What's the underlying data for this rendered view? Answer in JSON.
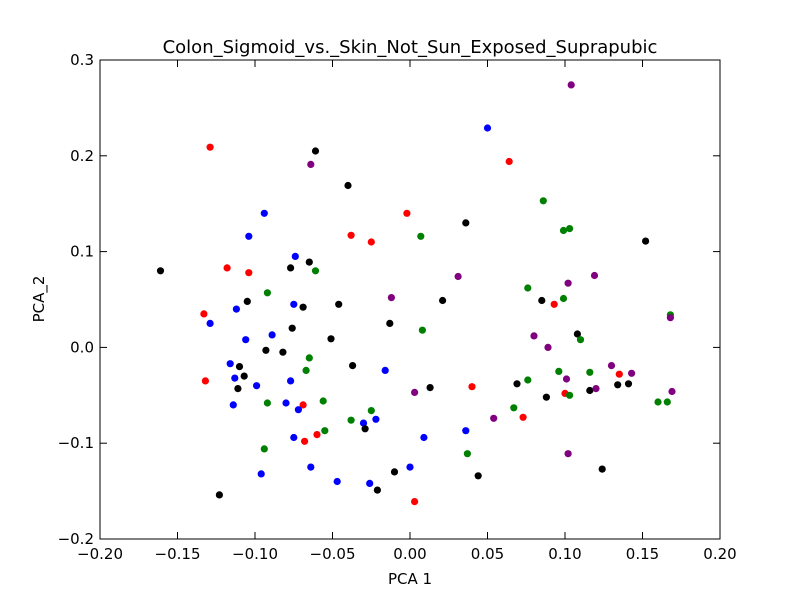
{
  "chart_data": {
    "type": "scatter",
    "title": "Colon_Sigmoid_vs._Skin_Not_Sun_Exposed_Suprapubic",
    "xlabel": "PCA 1",
    "ylabel": "PCA_2",
    "xlim": [
      -0.2,
      0.2
    ],
    "ylim": [
      -0.2,
      0.3
    ],
    "grid": false,
    "x_ticks": [
      -0.2,
      -0.15,
      -0.1,
      -0.05,
      0.0,
      0.05,
      0.1,
      0.15,
      0.2
    ],
    "x_tick_labels": [
      "−0.20",
      "−0.15",
      "−0.10",
      "−0.05",
      "0.00",
      "0.05",
      "0.10",
      "0.15",
      "0.20"
    ],
    "y_ticks": [
      -0.2,
      -0.1,
      0.0,
      0.1,
      0.2,
      0.3
    ],
    "y_tick_labels": [
      "−0.2",
      "−0.1",
      "0.0",
      "0.1",
      "0.2",
      "0.3"
    ],
    "series": [
      {
        "color": "#ff0000",
        "points": [
          [
            -0.129,
            0.209
          ],
          [
            -0.118,
            0.083
          ],
          [
            -0.104,
            0.078
          ],
          [
            -0.133,
            0.035
          ],
          [
            -0.132,
            -0.035
          ],
          [
            -0.069,
            -0.06
          ],
          [
            -0.068,
            -0.098
          ],
          [
            -0.06,
            -0.091
          ],
          [
            -0.038,
            0.117
          ],
          [
            -0.025,
            0.11
          ],
          [
            -0.002,
            0.14
          ],
          [
            0.003,
            -0.161
          ],
          [
            0.04,
            -0.041
          ],
          [
            0.064,
            0.194
          ],
          [
            0.073,
            -0.073
          ],
          [
            0.093,
            0.045
          ],
          [
            0.1,
            -0.048
          ],
          [
            0.135,
            -0.028
          ]
        ]
      },
      {
        "color": "#0000ff",
        "points": [
          [
            0.05,
            0.229
          ],
          [
            -0.094,
            0.14
          ],
          [
            -0.104,
            0.116
          ],
          [
            -0.074,
            0.095
          ],
          [
            -0.112,
            0.04
          ],
          [
            -0.129,
            0.025
          ],
          [
            -0.075,
            0.045
          ],
          [
            -0.089,
            0.013
          ],
          [
            -0.106,
            0.008
          ],
          [
            -0.116,
            -0.017
          ],
          [
            -0.113,
            -0.032
          ],
          [
            -0.099,
            -0.04
          ],
          [
            -0.077,
            -0.035
          ],
          [
            -0.114,
            -0.06
          ],
          [
            -0.08,
            -0.058
          ],
          [
            -0.072,
            -0.065
          ],
          [
            -0.075,
            -0.094
          ],
          [
            -0.03,
            -0.079
          ],
          [
            -0.022,
            -0.075
          ],
          [
            -0.016,
            -0.024
          ],
          [
            0.009,
            -0.094
          ],
          [
            0.036,
            -0.087
          ],
          [
            -0.096,
            -0.132
          ],
          [
            -0.064,
            -0.125
          ],
          [
            -0.047,
            -0.14
          ],
          [
            -0.026,
            -0.142
          ],
          [
            0.0,
            -0.125
          ]
        ]
      },
      {
        "color": "#000000",
        "points": [
          [
            -0.161,
            0.08
          ],
          [
            -0.061,
            0.205
          ],
          [
            -0.04,
            0.169
          ],
          [
            -0.065,
            0.089
          ],
          [
            -0.077,
            0.083
          ],
          [
            -0.105,
            0.048
          ],
          [
            -0.069,
            0.042
          ],
          [
            -0.046,
            0.045
          ],
          [
            -0.076,
            0.02
          ],
          [
            -0.051,
            0.009
          ],
          [
            -0.093,
            -0.003
          ],
          [
            -0.082,
            -0.005
          ],
          [
            -0.11,
            -0.02
          ],
          [
            -0.107,
            -0.03
          ],
          [
            -0.111,
            -0.043
          ],
          [
            -0.037,
            -0.019
          ],
          [
            -0.029,
            -0.085
          ],
          [
            -0.021,
            -0.149
          ],
          [
            -0.01,
            -0.13
          ],
          [
            0.013,
            -0.042
          ],
          [
            0.021,
            0.049
          ],
          [
            0.036,
            0.13
          ],
          [
            0.044,
            -0.134
          ],
          [
            0.069,
            -0.038
          ],
          [
            0.085,
            0.049
          ],
          [
            0.088,
            -0.052
          ],
          [
            0.108,
            0.014
          ],
          [
            0.116,
            -0.045
          ],
          [
            0.124,
            -0.127
          ],
          [
            0.134,
            -0.039
          ],
          [
            0.141,
            -0.038
          ],
          [
            0.152,
            0.111
          ],
          [
            -0.123,
            -0.154
          ],
          [
            -0.013,
            0.025
          ]
        ]
      },
      {
        "color": "#008000",
        "points": [
          [
            -0.092,
            0.057
          ],
          [
            -0.061,
            0.08
          ],
          [
            -0.065,
            -0.011
          ],
          [
            -0.067,
            -0.024
          ],
          [
            -0.092,
            -0.058
          ],
          [
            -0.094,
            -0.106
          ],
          [
            -0.056,
            -0.056
          ],
          [
            -0.055,
            -0.087
          ],
          [
            -0.038,
            -0.076
          ],
          [
            -0.025,
            -0.066
          ],
          [
            0.007,
            0.116
          ],
          [
            0.008,
            0.018
          ],
          [
            0.037,
            -0.111
          ],
          [
            0.067,
            -0.063
          ],
          [
            0.076,
            0.062
          ],
          [
            0.076,
            -0.034
          ],
          [
            0.086,
            0.153
          ],
          [
            0.099,
            0.051
          ],
          [
            0.099,
            0.122
          ],
          [
            0.103,
            0.124
          ],
          [
            0.096,
            -0.025
          ],
          [
            0.103,
            -0.05
          ],
          [
            0.11,
            0.008
          ],
          [
            0.116,
            -0.026
          ],
          [
            0.16,
            -0.057
          ],
          [
            0.166,
            -0.057
          ],
          [
            0.168,
            0.034
          ]
        ]
      },
      {
        "color": "#800080",
        "points": [
          [
            -0.064,
            0.191
          ],
          [
            -0.012,
            0.052
          ],
          [
            0.003,
            -0.047
          ],
          [
            0.031,
            0.074
          ],
          [
            0.054,
            -0.074
          ],
          [
            0.08,
            0.012
          ],
          [
            0.089,
            0.0
          ],
          [
            0.101,
            -0.033
          ],
          [
            0.102,
            0.067
          ],
          [
            0.104,
            0.274
          ],
          [
            0.119,
            0.075
          ],
          [
            0.13,
            -0.019
          ],
          [
            0.143,
            -0.027
          ],
          [
            0.168,
            0.031
          ],
          [
            0.169,
            -0.046
          ],
          [
            0.12,
            -0.043
          ],
          [
            0.102,
            -0.111
          ]
        ]
      }
    ]
  }
}
